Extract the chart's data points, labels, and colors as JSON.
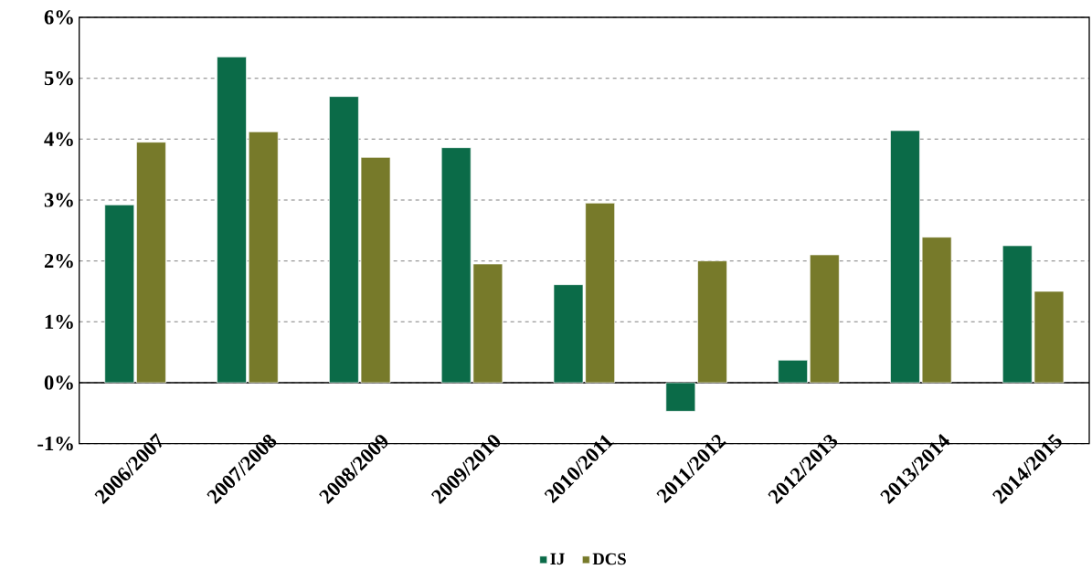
{
  "chart_data": {
    "type": "bar",
    "categories": [
      "2006/2007",
      "2007/2008",
      "2008/2009",
      "2009/2010",
      "2010/2011",
      "2011/2012",
      "2012/2013",
      "2013/2014",
      "2014/2015"
    ],
    "series": [
      {
        "name": "IJ",
        "color": "#0b6b48",
        "values": [
          2.92,
          5.35,
          4.7,
          3.86,
          1.61,
          -0.47,
          0.37,
          4.14,
          2.25
        ]
      },
      {
        "name": "DCS",
        "color": "#777a2a",
        "values": [
          3.95,
          4.12,
          3.7,
          1.95,
          2.95,
          2.0,
          2.1,
          2.39,
          1.5
        ]
      }
    ],
    "ylim": [
      -1,
      6
    ],
    "yticks": [
      {
        "value": -1,
        "label": "-1%"
      },
      {
        "value": 0,
        "label": "0%"
      },
      {
        "value": 1,
        "label": "1%"
      },
      {
        "value": 2,
        "label": "2%"
      },
      {
        "value": 3,
        "label": "3%"
      },
      {
        "value": 4,
        "label": "4%"
      },
      {
        "value": 5,
        "label": "5%"
      },
      {
        "value": 6,
        "label": "6%"
      }
    ],
    "grid": "y",
    "legend": "bottom"
  }
}
